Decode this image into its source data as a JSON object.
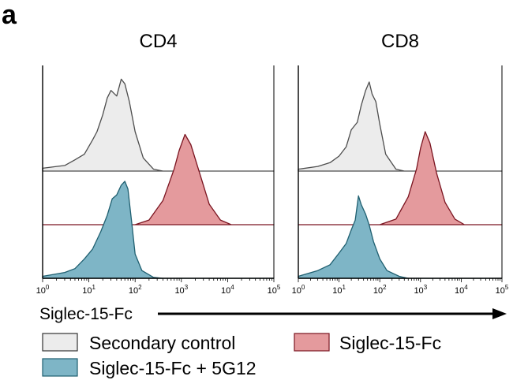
{
  "figure": {
    "panel_letter": "a",
    "axis_label": "Siglec-15-Fc",
    "legend": [
      {
        "label": "Secondary control",
        "color": "#ececec"
      },
      {
        "label": "Siglec-15-Fc",
        "color": "#e49a9d"
      },
      {
        "label": "Siglec-15-Fc + 5G12",
        "color": "#7eb5c6"
      }
    ]
  },
  "colors": {
    "secondary_fill": "#ececec",
    "secondary_line": "#4d4d4d",
    "siglec_fill": "#e49a9d",
    "siglec_line": "#7a1420",
    "g12_fill": "#7eb5c6",
    "g12_line": "#1f5f70"
  },
  "chart_data": [
    {
      "type": "area",
      "title": "CD4",
      "x_scale": "log",
      "xlim": [
        1,
        100000
      ],
      "tick_labels": [
        {
          "base": "10",
          "exp": "0"
        },
        {
          "base": "10",
          "exp": "1"
        },
        {
          "base": "10",
          "exp": "2"
        },
        {
          "base": "10",
          "exp": "3"
        },
        {
          "base": "10",
          "exp": "4"
        },
        {
          "base": "10",
          "exp": "5"
        }
      ],
      "series": [
        {
          "name": "Secondary control",
          "points": [
            [
              1,
              0.03
            ],
            [
              3,
              0.06
            ],
            [
              5,
              0.12
            ],
            [
              8,
              0.18
            ],
            [
              12,
              0.33
            ],
            [
              15,
              0.42
            ],
            [
              20,
              0.6
            ],
            [
              25,
              0.78
            ],
            [
              30,
              0.86
            ],
            [
              40,
              0.8
            ],
            [
              50,
              0.98
            ],
            [
              60,
              0.93
            ],
            [
              75,
              0.74
            ],
            [
              100,
              0.42
            ],
            [
              150,
              0.14
            ],
            [
              250,
              0.02
            ],
            [
              400,
              0
            ]
          ]
        },
        {
          "name": "Siglec-15-Fc",
          "points": [
            [
              100,
              0
            ],
            [
              200,
              0.05
            ],
            [
              400,
              0.26
            ],
            [
              700,
              0.6
            ],
            [
              900,
              0.8
            ],
            [
              1200,
              0.97
            ],
            [
              1600,
              0.86
            ],
            [
              2500,
              0.55
            ],
            [
              4000,
              0.22
            ],
            [
              7000,
              0.05
            ],
            [
              12000,
              0
            ]
          ]
        },
        {
          "name": "Siglec-15-Fc + 5G12",
          "points": [
            [
              1,
              0.02
            ],
            [
              3,
              0.06
            ],
            [
              5,
              0.1
            ],
            [
              8,
              0.2
            ],
            [
              12,
              0.3
            ],
            [
              18,
              0.48
            ],
            [
              25,
              0.65
            ],
            [
              32,
              0.82
            ],
            [
              40,
              0.86
            ],
            [
              50,
              0.96
            ],
            [
              60,
              1.0
            ],
            [
              70,
              0.92
            ],
            [
              85,
              0.56
            ],
            [
              100,
              0.25
            ],
            [
              140,
              0.08
            ],
            [
              250,
              0.01
            ],
            [
              400,
              0
            ]
          ]
        }
      ]
    },
    {
      "type": "area",
      "title": "CD8",
      "x_scale": "log",
      "xlim": [
        1,
        100000
      ],
      "tick_labels": [
        {
          "base": "10",
          "exp": "0"
        },
        {
          "base": "10",
          "exp": "1"
        },
        {
          "base": "10",
          "exp": "2"
        },
        {
          "base": "10",
          "exp": "3"
        },
        {
          "base": "10",
          "exp": "4"
        },
        {
          "base": "10",
          "exp": "5"
        }
      ],
      "series": [
        {
          "name": "Secondary control",
          "points": [
            [
              1,
              0.02
            ],
            [
              3,
              0.05
            ],
            [
              6,
              0.09
            ],
            [
              10,
              0.16
            ],
            [
              15,
              0.26
            ],
            [
              20,
              0.44
            ],
            [
              28,
              0.52
            ],
            [
              35,
              0.7
            ],
            [
              45,
              0.86
            ],
            [
              55,
              0.95
            ],
            [
              65,
              0.82
            ],
            [
              80,
              0.74
            ],
            [
              100,
              0.5
            ],
            [
              140,
              0.18
            ],
            [
              250,
              0.02
            ],
            [
              400,
              0
            ]
          ]
        },
        {
          "name": "Siglec-15-Fc",
          "points": [
            [
              100,
              0
            ],
            [
              250,
              0.06
            ],
            [
              500,
              0.3
            ],
            [
              800,
              0.6
            ],
            [
              1000,
              0.82
            ],
            [
              1300,
              1.0
            ],
            [
              1700,
              0.88
            ],
            [
              2500,
              0.55
            ],
            [
              4000,
              0.24
            ],
            [
              7000,
              0.06
            ],
            [
              12000,
              0
            ]
          ]
        },
        {
          "name": "Siglec-15-Fc + 5G12",
          "points": [
            [
              1,
              0.02
            ],
            [
              3,
              0.08
            ],
            [
              6,
              0.14
            ],
            [
              10,
              0.26
            ],
            [
              15,
              0.36
            ],
            [
              20,
              0.5
            ],
            [
              25,
              0.6
            ],
            [
              30,
              0.85
            ],
            [
              35,
              0.76
            ],
            [
              45,
              0.66
            ],
            [
              55,
              0.55
            ],
            [
              70,
              0.38
            ],
            [
              100,
              0.2
            ],
            [
              150,
              0.08
            ],
            [
              300,
              0.02
            ],
            [
              500,
              0
            ]
          ]
        }
      ]
    }
  ]
}
